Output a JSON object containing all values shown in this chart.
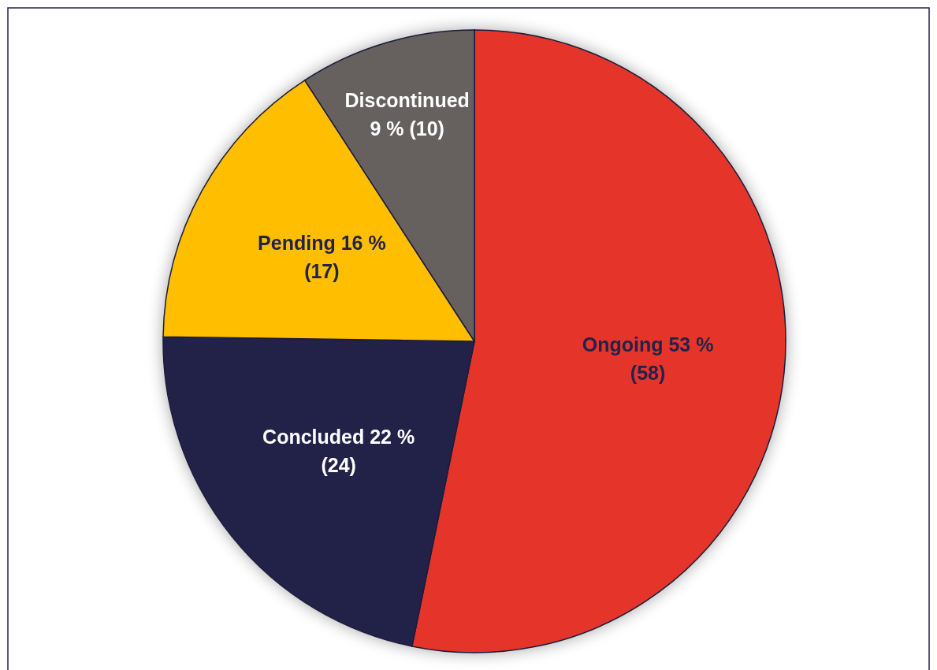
{
  "chart_data": {
    "type": "pie",
    "categories": [
      "Ongoing",
      "Concluded",
      "Pending",
      "Discontinued"
    ],
    "values": [
      58,
      24,
      17,
      10
    ],
    "colors": [
      "#e5352b",
      "#23224a",
      "#ffbe00",
      "#66605f"
    ],
    "value_labels": [
      "53 %\n(58)",
      "22 %\n(24)",
      "16 %\n(17)",
      "\n9 % (10)"
    ]
  }
}
